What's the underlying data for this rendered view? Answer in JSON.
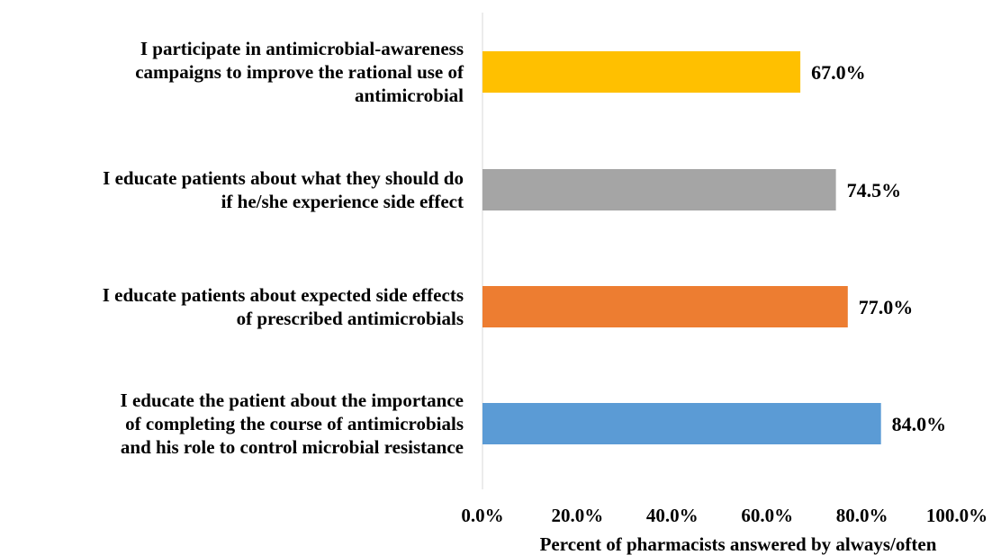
{
  "chart_data": {
    "type": "bar",
    "orientation": "horizontal",
    "categories": [
      [
        "I participate in antimicrobial-awareness",
        "campaigns to improve the rational use of",
        "antimicrobial"
      ],
      [
        "I educate patients about what they should do",
        "if he/she experience side effect"
      ],
      [
        "I educate patients about expected side effects",
        "of prescribed antimicrobials"
      ],
      [
        "I educate the patient about the importance",
        "of completing the course of antimicrobials",
        "and his role to control microbial resistance"
      ]
    ],
    "values": [
      67.0,
      74.5,
      77.0,
      84.0
    ],
    "value_labels": [
      "67.0%",
      "74.5%",
      "77.0%",
      "84.0%"
    ],
    "colors": [
      "#ffc000",
      "#a5a5a5",
      "#ed7d31",
      "#5b9bd5"
    ],
    "xlim": [
      0,
      100
    ],
    "xticks": [
      "0.0%",
      "20.0%",
      "40.0%",
      "60.0%",
      "80.0%",
      "100.0%"
    ],
    "xlabel": "Percent of pharmacists answered by always/often",
    "grid": false,
    "legend": "none"
  }
}
